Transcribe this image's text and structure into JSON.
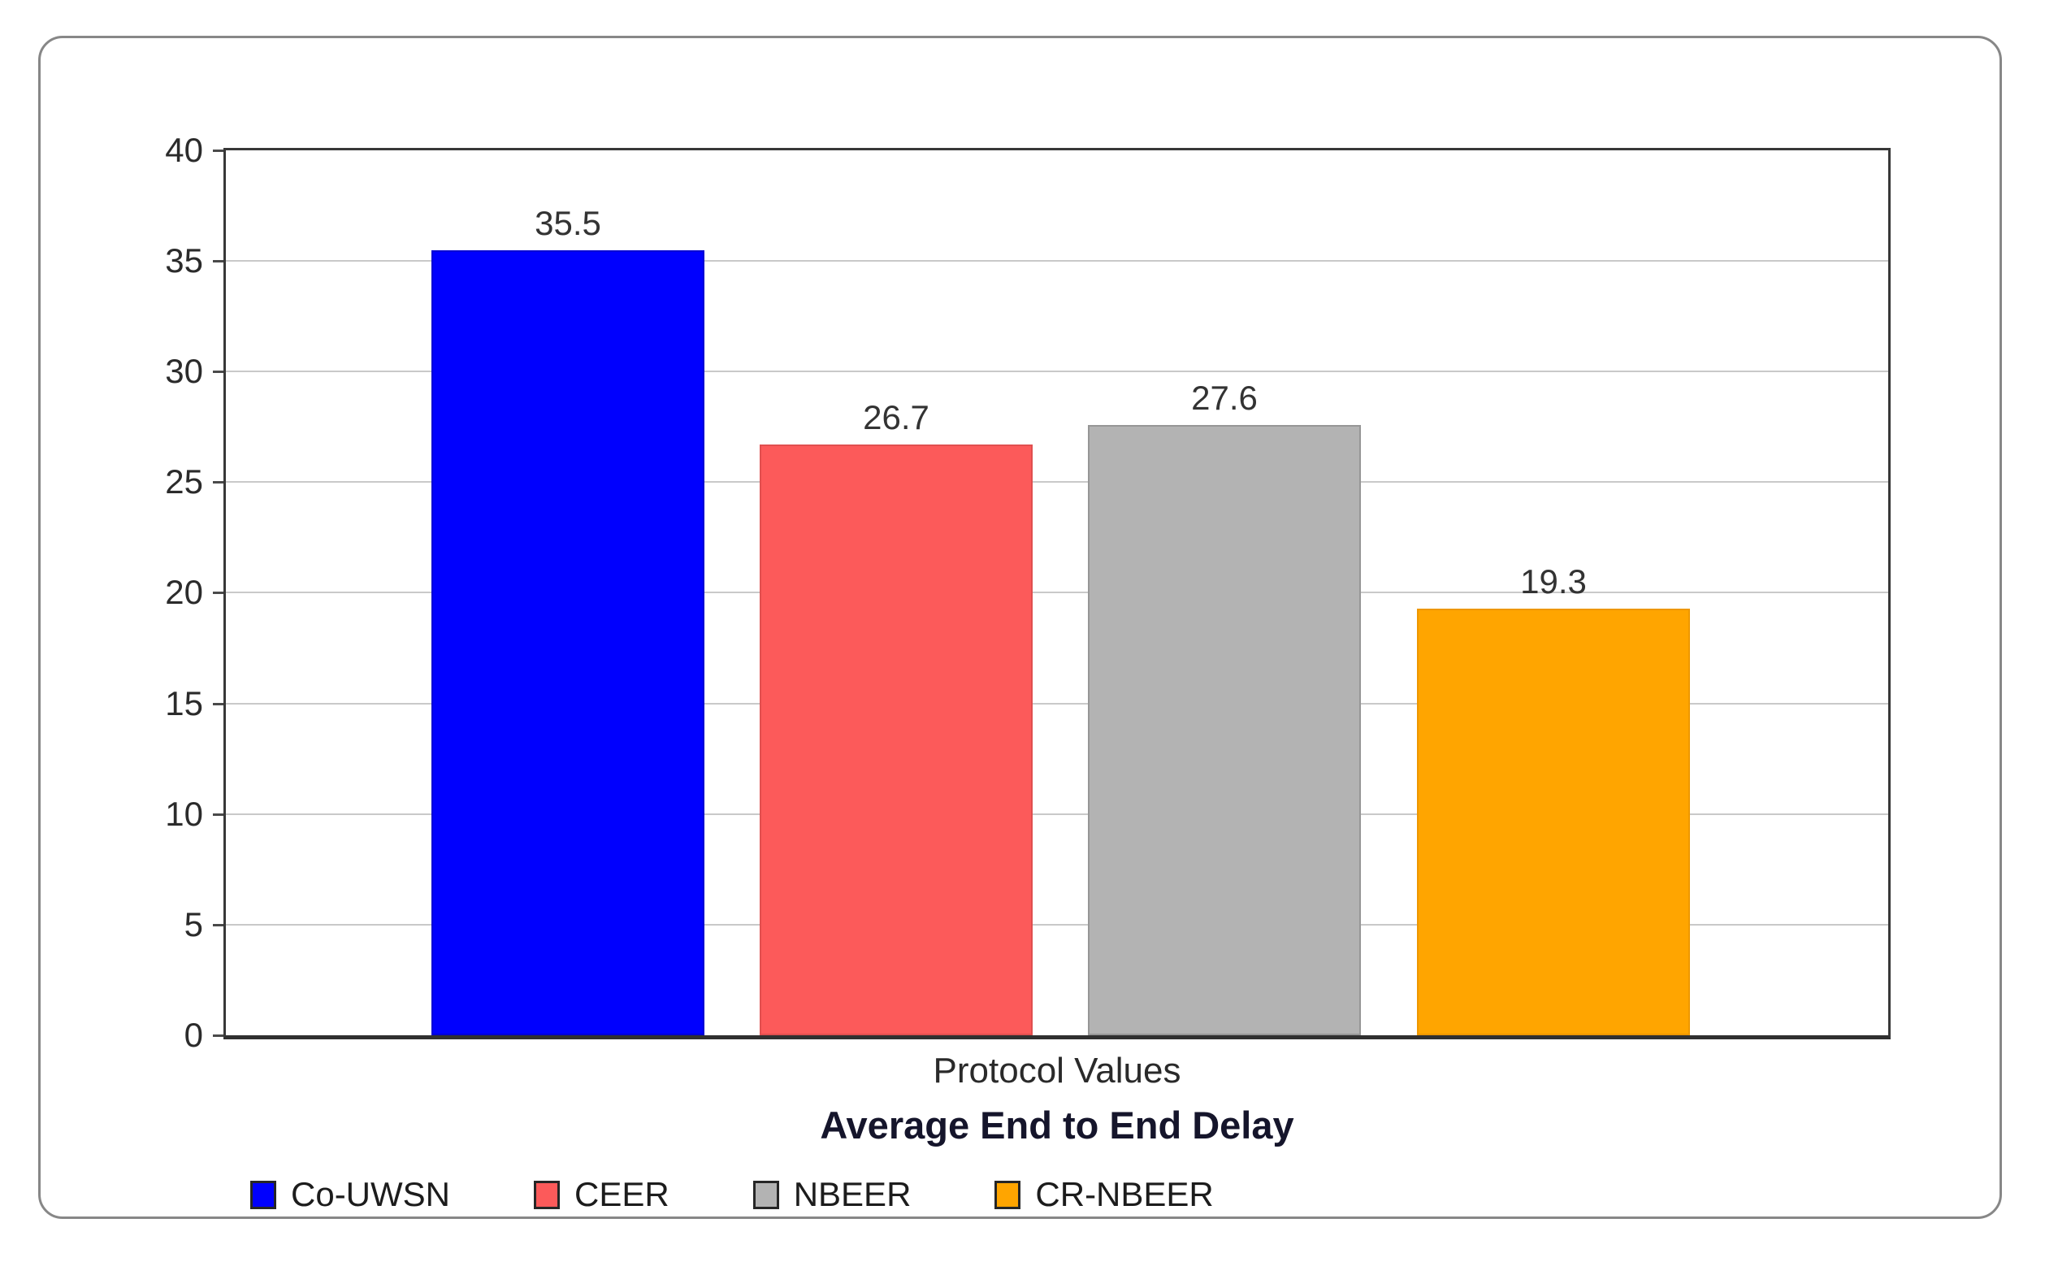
{
  "chart_data": {
    "type": "bar",
    "categories": [
      "Co-UWSN",
      "CEER",
      "NBEER",
      "CR-NBEER"
    ],
    "values": [
      35.5,
      26.7,
      27.6,
      19.3
    ],
    "value_labels": [
      "35.5",
      "26.7",
      "27.6",
      "19.3"
    ],
    "colors": [
      "#0000fe",
      "#fc5a5a",
      "#b3b3b3",
      "#ffa500"
    ],
    "bar_border_colors": [
      "#0000d4",
      "#e04f4f",
      "#969696",
      "#ee9700"
    ],
    "title": "Average End to End Delay",
    "xlabel": "Protocol Values",
    "ylabel": "",
    "ylim": [
      0,
      40
    ],
    "ytick_step": 5,
    "ytick_labels": [
      "0",
      "5",
      "10",
      "15",
      "20",
      "25",
      "30",
      "35",
      "40"
    ],
    "grid": "horizontal",
    "legend_position": "bottom-left",
    "legend_entries": [
      "Co-UWSN",
      "CEER",
      "NBEER",
      "CR-NBEER"
    ]
  }
}
